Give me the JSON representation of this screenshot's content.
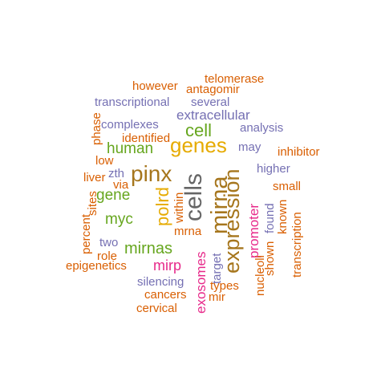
{
  "colors": {
    "orange": "#D95F02",
    "purple": "#7570B3",
    "green": "#66A61E",
    "gold": "#E6AB02",
    "brown": "#A6761D",
    "gray": "#666666",
    "magenta": "#E7298A"
  },
  "words": [
    {
      "text": "telomerase",
      "color": "orange"
    },
    {
      "text": "however",
      "color": "orange"
    },
    {
      "text": "antagomir",
      "color": "orange"
    },
    {
      "text": "transcriptional",
      "color": "purple"
    },
    {
      "text": "several",
      "color": "purple"
    },
    {
      "text": "extracellular",
      "color": "purple"
    },
    {
      "text": "phase",
      "color": "orange"
    },
    {
      "text": "complexes",
      "color": "purple"
    },
    {
      "text": "cell",
      "color": "green"
    },
    {
      "text": "analysis",
      "color": "purple"
    },
    {
      "text": "genes",
      "color": "gold"
    },
    {
      "text": "human",
      "color": "green"
    },
    {
      "text": "may",
      "color": "purple"
    },
    {
      "text": "identified",
      "color": "orange"
    },
    {
      "text": "inhibitor",
      "color": "orange"
    },
    {
      "text": "low",
      "color": "orange"
    },
    {
      "text": "zth",
      "color": "purple"
    },
    {
      "text": "pinx",
      "color": "brown"
    },
    {
      "text": "higher",
      "color": "purple"
    },
    {
      "text": "liver",
      "color": "orange"
    },
    {
      "text": "via",
      "color": "orange"
    },
    {
      "text": "cells",
      "color": "gray"
    },
    {
      "text": "small",
      "color": "orange"
    },
    {
      "text": "gene",
      "color": "green"
    },
    {
      "text": "polrd",
      "color": "gold"
    },
    {
      "text": "mirna",
      "color": "brown"
    },
    {
      "text": "expression",
      "color": "brown"
    },
    {
      "text": "promoter",
      "color": "magenta"
    },
    {
      "text": "sites",
      "color": "orange"
    },
    {
      "text": "within",
      "color": "orange"
    },
    {
      "text": "found",
      "color": "purple"
    },
    {
      "text": "myc",
      "color": "green"
    },
    {
      "text": "known",
      "color": "orange"
    },
    {
      "text": "transcription",
      "color": "orange"
    },
    {
      "text": "percent",
      "color": "orange"
    },
    {
      "text": "mrna",
      "color": "orange"
    },
    {
      "text": "two",
      "color": "purple"
    },
    {
      "text": "mirnas",
      "color": "green"
    },
    {
      "text": "role",
      "color": "orange"
    },
    {
      "text": "target",
      "color": "purple"
    },
    {
      "text": "exosomes",
      "color": "magenta"
    },
    {
      "text": "shown",
      "color": "orange"
    },
    {
      "text": "epigenetics",
      "color": "orange"
    },
    {
      "text": "mirp",
      "color": "magenta"
    },
    {
      "text": "nucleoli",
      "color": "orange"
    },
    {
      "text": "silencing",
      "color": "purple"
    },
    {
      "text": "types",
      "color": "orange"
    },
    {
      "text": "cancers",
      "color": "orange"
    },
    {
      "text": "mir",
      "color": "orange"
    },
    {
      "text": "cervical",
      "color": "orange"
    }
  ]
}
